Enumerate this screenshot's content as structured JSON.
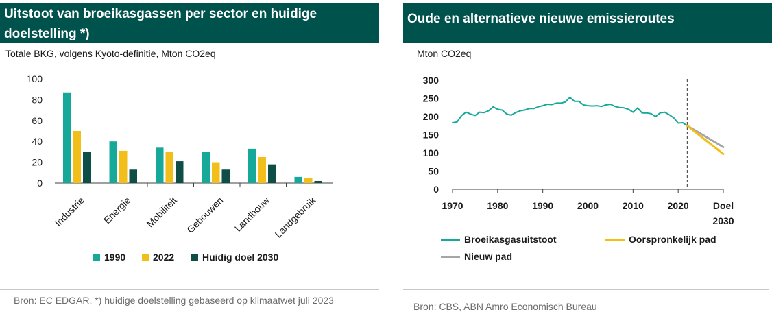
{
  "left": {
    "title": "Uitstoot van broeikasgassen per sector en huidige doelstelling *)",
    "subtitle": "Totale BKG, volgens Kyoto-definitie, Mton CO2eq",
    "source": "Bron: EC EDGAR, *) huidige doelstelling gebaseerd op klimaatwet juli 2023"
  },
  "right": {
    "title": "Oude en alternatieve nieuwe emissieroutes",
    "subtitle": "Mton CO2eq",
    "source": "Bron: CBS, ABN Amro Economisch Bureau"
  },
  "colors": {
    "teal": "#16a99a",
    "yellow": "#f2be1a",
    "dark": "#0f4d47",
    "gray": "#a6a6a6",
    "header": "#00524c"
  },
  "chart_data": [
    {
      "type": "bar",
      "categories": [
        "Industrie",
        "Energie",
        "Mobiliteit",
        "Gebouwen",
        "Landbouw",
        "Landgebruik"
      ],
      "series": [
        {
          "name": "1990",
          "values": [
            87,
            40,
            34,
            30,
            33,
            6
          ]
        },
        {
          "name": "2022",
          "values": [
            50,
            31,
            30,
            20,
            25,
            5
          ]
        },
        {
          "name": "Huidig doel 2030",
          "values": [
            30,
            13,
            21,
            13,
            18,
            2
          ]
        }
      ],
      "ylim": [
        0,
        100
      ],
      "yticks": [
        0,
        20,
        40,
        60,
        80,
        100
      ],
      "legend": "bottom"
    },
    {
      "type": "line",
      "x_ticks": [
        "1970",
        "1980",
        "1990",
        "2000",
        "2010",
        "2020",
        "Doel 2030"
      ],
      "ylim": [
        0,
        300
      ],
      "yticks": [
        0,
        50,
        100,
        150,
        200,
        250,
        300
      ],
      "series": [
        {
          "name": "Broeikasgasuitstoot",
          "x": [
            1970,
            1971,
            1972,
            1973,
            1974,
            1975,
            1976,
            1977,
            1978,
            1979,
            1980,
            1981,
            1982,
            1983,
            1984,
            1985,
            1986,
            1987,
            1988,
            1989,
            1990,
            1991,
            1992,
            1993,
            1994,
            1995,
            1996,
            1997,
            1998,
            1999,
            2000,
            2001,
            2002,
            2003,
            2004,
            2005,
            2006,
            2007,
            2008,
            2009,
            2010,
            2011,
            2012,
            2013,
            2014,
            2015,
            2016,
            2017,
            2018,
            2019,
            2020,
            2021,
            2022
          ],
          "y": [
            183,
            185,
            203,
            212,
            207,
            203,
            212,
            211,
            216,
            227,
            220,
            218,
            207,
            204,
            211,
            216,
            218,
            222,
            222,
            227,
            230,
            234,
            233,
            237,
            237,
            240,
            253,
            242,
            242,
            232,
            230,
            229,
            230,
            228,
            232,
            234,
            228,
            225,
            224,
            220,
            212,
            224,
            210,
            210,
            208,
            200,
            210,
            212,
            205,
            197,
            182,
            183,
            175
          ]
        },
        {
          "name": "Oorspronkelijk pad",
          "x": [
            2022,
            2030
          ],
          "y": [
            175,
            97
          ]
        },
        {
          "name": "Nieuw pad",
          "x": [
            2022,
            2030
          ],
          "y": [
            175,
            116
          ]
        }
      ],
      "vline_x": 2022,
      "legend": "bottom"
    }
  ]
}
